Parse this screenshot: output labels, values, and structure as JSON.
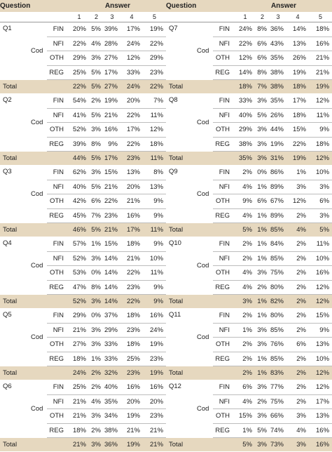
{
  "header": {
    "question": "Question",
    "answer": "Answer",
    "answers": [
      "1",
      "2",
      "3",
      "4",
      "5"
    ]
  },
  "total_label": "Total",
  "cod_label": "Cod",
  "columns": [
    [
      {
        "q": "Q1",
        "rows": [
          {
            "label": "FIN",
            "values": [
              "20%",
              "5%",
              "39%",
              "17%",
              "19%"
            ]
          },
          {
            "label": "NFI",
            "values": [
              "22%",
              "4%",
              "28%",
              "24%",
              "22%"
            ]
          },
          {
            "label": "OTH",
            "values": [
              "29%",
              "3%",
              "27%",
              "12%",
              "29%"
            ]
          },
          {
            "label": "REG",
            "values": [
              "25%",
              "5%",
              "17%",
              "33%",
              "23%"
            ]
          }
        ],
        "total": [
          "22%",
          "5%",
          "27%",
          "24%",
          "22%"
        ]
      },
      {
        "q": "Q2",
        "rows": [
          {
            "label": "FIN",
            "values": [
              "54%",
              "2%",
              "19%",
              "20%",
              "7%"
            ]
          },
          {
            "label": "NFI",
            "values": [
              "41%",
              "5%",
              "21%",
              "22%",
              "11%"
            ]
          },
          {
            "label": "OTH",
            "values": [
              "52%",
              "3%",
              "16%",
              "17%",
              "12%"
            ]
          },
          {
            "label": "REG",
            "values": [
              "39%",
              "8%",
              "9%",
              "22%",
              "18%"
            ]
          }
        ],
        "total": [
          "44%",
          "5%",
          "17%",
          "23%",
          "11%"
        ]
      },
      {
        "q": "Q3",
        "rows": [
          {
            "label": "FIN",
            "values": [
              "62%",
              "3%",
              "15%",
              "13%",
              "8%"
            ]
          },
          {
            "label": "NFI",
            "values": [
              "40%",
              "5%",
              "21%",
              "20%",
              "13%"
            ]
          },
          {
            "label": "OTH",
            "values": [
              "42%",
              "6%",
              "22%",
              "21%",
              "9%"
            ]
          },
          {
            "label": "REG",
            "values": [
              "45%",
              "7%",
              "23%",
              "16%",
              "9%"
            ]
          }
        ],
        "total": [
          "46%",
          "5%",
          "21%",
          "17%",
          "11%"
        ]
      },
      {
        "q": "Q4",
        "rows": [
          {
            "label": "FIN",
            "values": [
              "57%",
              "1%",
              "15%",
              "18%",
              "9%"
            ]
          },
          {
            "label": "NFI",
            "values": [
              "52%",
              "3%",
              "14%",
              "21%",
              "10%"
            ]
          },
          {
            "label": "OTH",
            "values": [
              "53%",
              "0%",
              "14%",
              "22%",
              "11%"
            ]
          },
          {
            "label": "REG",
            "values": [
              "47%",
              "8%",
              "14%",
              "23%",
              "9%"
            ]
          }
        ],
        "total": [
          "52%",
          "3%",
          "14%",
          "22%",
          "9%"
        ]
      },
      {
        "q": "Q5",
        "rows": [
          {
            "label": "FIN",
            "values": [
              "29%",
              "0%",
              "37%",
              "18%",
              "16%"
            ]
          },
          {
            "label": "NFI",
            "values": [
              "21%",
              "3%",
              "29%",
              "23%",
              "24%"
            ]
          },
          {
            "label": "OTH",
            "values": [
              "27%",
              "3%",
              "33%",
              "18%",
              "19%"
            ]
          },
          {
            "label": "REG",
            "values": [
              "18%",
              "1%",
              "33%",
              "25%",
              "23%"
            ]
          }
        ],
        "total": [
          "24%",
          "2%",
          "32%",
          "23%",
          "19%"
        ]
      },
      {
        "q": "Q6",
        "rows": [
          {
            "label": "FIN",
            "values": [
              "25%",
              "2%",
              "40%",
              "16%",
              "16%"
            ]
          },
          {
            "label": "NFI",
            "values": [
              "21%",
              "4%",
              "35%",
              "20%",
              "20%"
            ]
          },
          {
            "label": "OTH",
            "values": [
              "21%",
              "3%",
              "34%",
              "19%",
              "23%"
            ]
          },
          {
            "label": "REG",
            "values": [
              "18%",
              "2%",
              "38%",
              "21%",
              "21%"
            ]
          }
        ],
        "total": [
          "21%",
          "3%",
          "36%",
          "19%",
          "21%"
        ]
      }
    ],
    [
      {
        "q": "Q7",
        "rows": [
          {
            "label": "FIN",
            "values": [
              "24%",
              "8%",
              "36%",
              "14%",
              "18%"
            ]
          },
          {
            "label": "NFI",
            "values": [
              "22%",
              "6%",
              "43%",
              "13%",
              "16%"
            ]
          },
          {
            "label": "OTH",
            "values": [
              "12%",
              "6%",
              "35%",
              "26%",
              "21%"
            ]
          },
          {
            "label": "REG",
            "values": [
              "14%",
              "8%",
              "38%",
              "19%",
              "21%"
            ]
          }
        ],
        "total": [
          "18%",
          "7%",
          "38%",
          "18%",
          "19%"
        ]
      },
      {
        "q": "Q8",
        "rows": [
          {
            "label": "FIN",
            "values": [
              "33%",
              "3%",
              "35%",
              "17%",
              "12%"
            ]
          },
          {
            "label": "NFI",
            "values": [
              "40%",
              "5%",
              "26%",
              "18%",
              "11%"
            ]
          },
          {
            "label": "OTH",
            "values": [
              "29%",
              "3%",
              "44%",
              "15%",
              "9%"
            ]
          },
          {
            "label": "REG",
            "values": [
              "38%",
              "3%",
              "19%",
              "22%",
              "18%"
            ]
          }
        ],
        "total": [
          "35%",
          "3%",
          "31%",
          "19%",
          "12%"
        ]
      },
      {
        "q": "Q9",
        "rows": [
          {
            "label": "FIN",
            "values": [
              "2%",
              "0%",
              "86%",
              "1%",
              "10%"
            ]
          },
          {
            "label": "NFI",
            "values": [
              "4%",
              "1%",
              "89%",
              "3%",
              "3%"
            ]
          },
          {
            "label": "OTH",
            "values": [
              "9%",
              "6%",
              "67%",
              "12%",
              "6%"
            ]
          },
          {
            "label": "REG",
            "values": [
              "4%",
              "1%",
              "89%",
              "2%",
              "3%"
            ]
          }
        ],
        "total": [
          "5%",
          "1%",
          "85%",
          "4%",
          "5%"
        ]
      },
      {
        "q": "Q10",
        "rows": [
          {
            "label": "FIN",
            "values": [
              "2%",
              "1%",
              "84%",
              "2%",
              "11%"
            ]
          },
          {
            "label": "NFI",
            "values": [
              "2%",
              "1%",
              "85%",
              "2%",
              "10%"
            ]
          },
          {
            "label": "OTH",
            "values": [
              "4%",
              "3%",
              "75%",
              "2%",
              "16%"
            ]
          },
          {
            "label": "REG",
            "values": [
              "4%",
              "2%",
              "80%",
              "2%",
              "12%"
            ]
          }
        ],
        "total": [
          "3%",
          "1%",
          "82%",
          "2%",
          "12%"
        ]
      },
      {
        "q": "Q11",
        "rows": [
          {
            "label": "FIN",
            "values": [
              "2%",
              "1%",
              "80%",
              "2%",
              "15%"
            ]
          },
          {
            "label": "NFI",
            "values": [
              "1%",
              "3%",
              "85%",
              "2%",
              "9%"
            ]
          },
          {
            "label": "OTH",
            "values": [
              "2%",
              "3%",
              "76%",
              "6%",
              "13%"
            ]
          },
          {
            "label": "REG",
            "values": [
              "2%",
              "1%",
              "85%",
              "2%",
              "10%"
            ]
          }
        ],
        "total": [
          "2%",
          "1%",
          "83%",
          "2%",
          "12%"
        ]
      },
      {
        "q": "Q12",
        "rows": [
          {
            "label": "FIN",
            "values": [
              "6%",
              "3%",
              "77%",
              "2%",
              "12%"
            ]
          },
          {
            "label": "NFI",
            "values": [
              "4%",
              "2%",
              "75%",
              "2%",
              "17%"
            ]
          },
          {
            "label": "OTH",
            "values": [
              "15%",
              "3%",
              "66%",
              "3%",
              "13%"
            ]
          },
          {
            "label": "REG",
            "values": [
              "1%",
              "5%",
              "74%",
              "4%",
              "16%"
            ]
          }
        ],
        "total": [
          "5%",
          "3%",
          "73%",
          "3%",
          "16%"
        ]
      }
    ]
  ]
}
